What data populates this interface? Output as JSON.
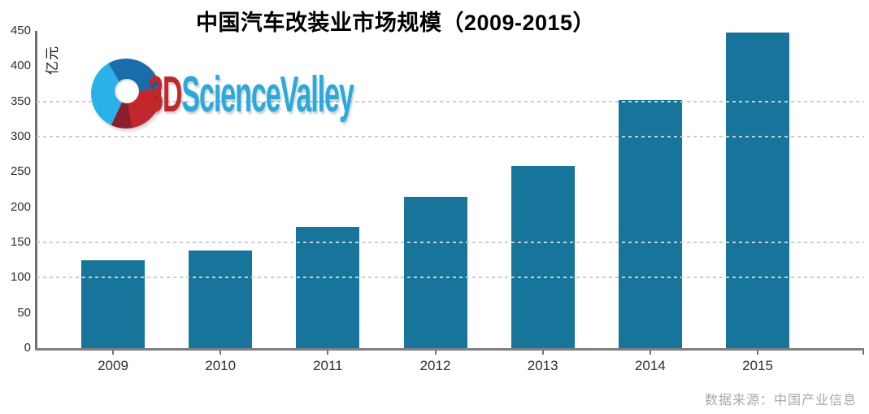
{
  "title": "中国汽车改装业市场规模（2009-2015）",
  "y_axis_unit": "亿元",
  "source": "数据来源：中国产业信息",
  "logo": {
    "name": "3d-science-valley-logo",
    "text_3d": "3D",
    "text_rest": "ScienceValley"
  },
  "colors": {
    "bar": "#17749A",
    "axis": "#7f7f7f",
    "gridline": "#c9ced2",
    "title_text": "#000000",
    "tick_label": "#2e2e2e",
    "source_text": "#a9a9a9",
    "logo_red": "#c4272b",
    "logo_blue": "#29a9dc"
  },
  "chart_data": {
    "type": "bar",
    "title": "中国汽车改装业市场规模（2009-2015）",
    "categories": [
      "2009",
      "2010",
      "2011",
      "2012",
      "2013",
      "2014",
      "2015"
    ],
    "values": [
      125,
      138,
      172,
      215,
      258,
      352,
      448
    ],
    "xlabel": "",
    "ylabel": "亿元",
    "ylim": [
      0,
      450
    ],
    "y_ticks": [
      0,
      50,
      100,
      150,
      200,
      250,
      300,
      350,
      400,
      450
    ],
    "gridlines_at": [
      100,
      150,
      300,
      350
    ],
    "grid_style": "dashed",
    "legend": "none",
    "source": "数据来源：中国产业信息"
  }
}
